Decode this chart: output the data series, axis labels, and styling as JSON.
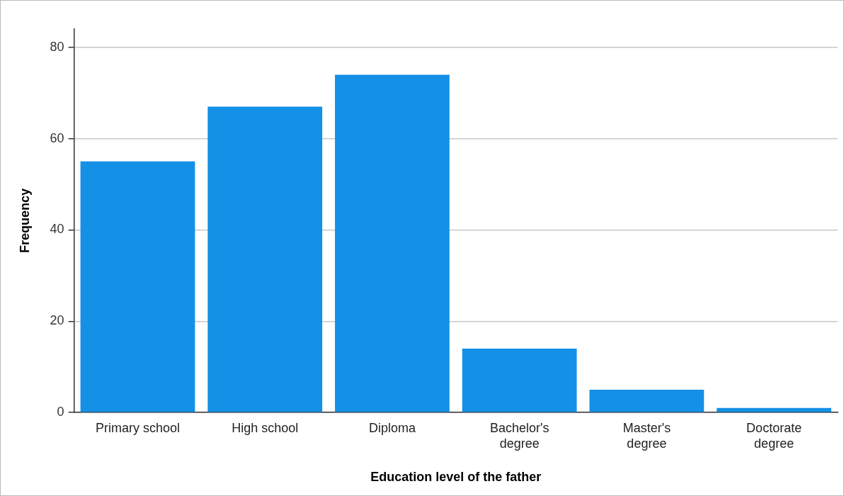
{
  "chart_data": {
    "type": "bar",
    "xlabel": "Education level of the father",
    "ylabel": "Frequency",
    "categories": [
      "Primary school",
      "High school",
      "Diploma",
      "Bachelor's\ndegree",
      "Master's\ndegree",
      "Doctorate\ndegree"
    ],
    "values": [
      55,
      67,
      74,
      14,
      5,
      1
    ],
    "color": "#1490e6",
    "ylim": [
      0,
      84
    ],
    "yticks": [
      0,
      20,
      40,
      60,
      80
    ],
    "grid": "y",
    "legend": false
  }
}
